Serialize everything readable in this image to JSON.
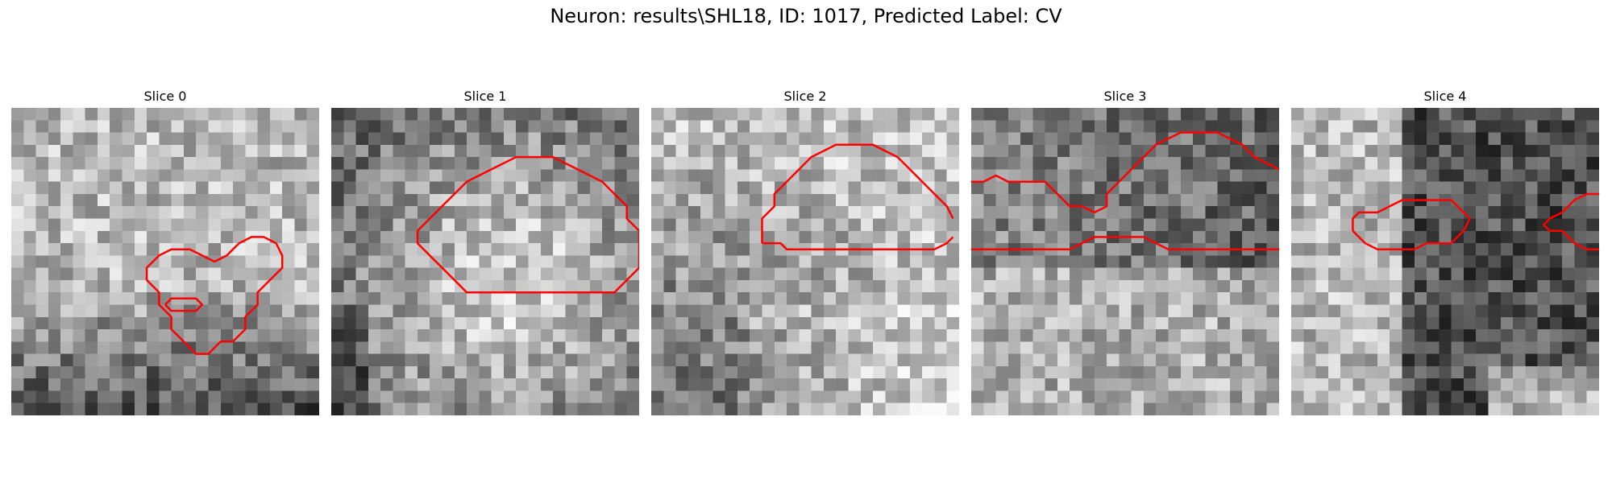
{
  "figure": {
    "title": "Neuron: results\\SHL18, ID: 1017, Predicted Label: CV",
    "contour_color": "#ff0000",
    "colormap": "gray"
  },
  "panels": [
    {
      "title": "Slice 0",
      "seed": 11,
      "pattern": "light-top-dark-bottom",
      "contours": [
        [
          [
            21.5,
            11
          ],
          [
            20.5,
            10.5
          ],
          [
            19.5,
            10.5
          ],
          [
            18.5,
            11
          ],
          [
            18,
            11.5
          ],
          [
            17.5,
            12
          ],
          [
            16.5,
            12.5
          ],
          [
            15.5,
            12
          ],
          [
            14.5,
            11.5
          ],
          [
            13,
            11.5
          ],
          [
            12,
            12
          ],
          [
            11,
            13
          ],
          [
            11,
            14
          ],
          [
            12,
            15
          ],
          [
            12,
            16
          ],
          [
            13,
            17
          ],
          [
            13,
            18
          ],
          [
            14,
            19
          ],
          [
            15,
            20
          ],
          [
            16,
            20
          ],
          [
            17,
            19
          ],
          [
            18,
            19
          ],
          [
            19,
            18
          ],
          [
            19,
            17
          ],
          [
            20,
            16
          ],
          [
            20,
            15
          ],
          [
            21,
            14
          ],
          [
            22,
            13
          ],
          [
            22,
            12
          ],
          [
            21.5,
            11
          ]
        ],
        [
          [
            12.5,
            16
          ],
          [
            13,
            15.5
          ],
          [
            15,
            15.5
          ],
          [
            15.5,
            16
          ],
          [
            15,
            16.5
          ],
          [
            13,
            16.5
          ],
          [
            12.5,
            16
          ]
        ]
      ]
    },
    {
      "title": "Slice 1",
      "seed": 23,
      "pattern": "light-center",
      "contours": [
        [
          [
            7,
            10
          ],
          [
            8,
            9
          ],
          [
            9,
            8
          ],
          [
            10,
            7
          ],
          [
            11,
            6
          ],
          [
            12,
            5.5
          ],
          [
            13,
            5
          ],
          [
            14,
            4.5
          ],
          [
            15,
            4
          ],
          [
            16,
            4
          ],
          [
            17,
            4
          ],
          [
            18,
            4
          ],
          [
            19,
            4.5
          ],
          [
            20,
            5
          ],
          [
            21,
            5.5
          ],
          [
            22,
            6
          ],
          [
            23,
            7
          ],
          [
            24,
            8
          ],
          [
            24,
            9
          ],
          [
            25,
            10
          ],
          [
            25,
            11
          ],
          [
            25,
            12
          ],
          [
            25,
            13
          ],
          [
            24,
            14
          ],
          [
            23,
            15
          ],
          [
            22,
            15
          ],
          [
            20,
            15
          ],
          [
            18,
            15
          ],
          [
            16,
            15
          ],
          [
            14,
            15
          ],
          [
            12,
            15
          ],
          [
            11,
            15
          ],
          [
            10,
            14
          ],
          [
            9,
            13
          ],
          [
            8,
            12
          ],
          [
            7,
            11
          ],
          [
            7,
            10
          ]
        ]
      ]
    },
    {
      "title": "Slice 2",
      "seed": 37,
      "pattern": "dark-bottom-left",
      "contours": [
        [
          [
            9,
            11
          ],
          [
            9,
            10
          ],
          [
            9,
            9
          ],
          [
            10,
            8
          ],
          [
            10,
            7
          ],
          [
            11,
            6
          ],
          [
            12,
            5
          ],
          [
            13,
            4
          ],
          [
            14,
            3.5
          ],
          [
            15,
            3
          ],
          [
            16,
            3
          ],
          [
            17,
            3
          ],
          [
            18,
            3
          ],
          [
            19,
            3.5
          ],
          [
            20,
            4
          ],
          [
            21,
            5
          ],
          [
            22,
            6
          ],
          [
            23,
            7
          ],
          [
            24,
            8
          ],
          [
            24.5,
            9
          ]
        ],
        [
          [
            24.5,
            10.5
          ],
          [
            24,
            11
          ],
          [
            23,
            11.5
          ],
          [
            22,
            11.5
          ],
          [
            20,
            11.5
          ],
          [
            18,
            11.5
          ],
          [
            16,
            11.5
          ],
          [
            14,
            11.5
          ],
          [
            12,
            11.5
          ],
          [
            11,
            11.5
          ],
          [
            10.5,
            11
          ],
          [
            9.5,
            11
          ],
          [
            9,
            11
          ]
        ]
      ]
    },
    {
      "title": "Slice 3",
      "seed": 53,
      "pattern": "dark-top-light-bottom",
      "contours": [
        [
          [
            0,
            6
          ],
          [
            1,
            6
          ],
          [
            2,
            5.5
          ],
          [
            3,
            6
          ],
          [
            4,
            6
          ],
          [
            5,
            6
          ],
          [
            6,
            6
          ],
          [
            7,
            7
          ],
          [
            8,
            8
          ],
          [
            9,
            8
          ],
          [
            10,
            8.5
          ],
          [
            11,
            8
          ],
          [
            11,
            7
          ],
          [
            12,
            6
          ],
          [
            13,
            5
          ],
          [
            14,
            4
          ],
          [
            15,
            3
          ],
          [
            16,
            2.5
          ],
          [
            17,
            2
          ],
          [
            18,
            2
          ],
          [
            19,
            2
          ],
          [
            20,
            2
          ],
          [
            21,
            2.5
          ],
          [
            22,
            3
          ],
          [
            23,
            4
          ],
          [
            24,
            4.5
          ],
          [
            25,
            5
          ]
        ],
        [
          [
            0,
            11.5
          ],
          [
            3,
            11.5
          ],
          [
            6,
            11.5
          ],
          [
            8,
            11.5
          ],
          [
            9,
            11
          ],
          [
            10,
            10.5
          ],
          [
            12,
            10.5
          ],
          [
            14,
            10.5
          ],
          [
            15,
            11
          ],
          [
            16,
            11.5
          ],
          [
            18,
            11.5
          ],
          [
            22,
            11.5
          ],
          [
            25,
            11.5
          ]
        ]
      ]
    },
    {
      "title": "Slice 4",
      "seed": 71,
      "pattern": "light-left-dark-right",
      "contours": [
        [
          [
            5,
            10
          ],
          [
            5,
            9
          ],
          [
            5.5,
            8.5
          ],
          [
            7,
            8.5
          ],
          [
            8,
            8
          ],
          [
            9,
            7.5
          ],
          [
            10,
            7.5
          ],
          [
            11,
            7.5
          ],
          [
            12,
            7.5
          ],
          [
            13,
            7.5
          ],
          [
            13.5,
            8
          ],
          [
            14,
            8.5
          ],
          [
            14.5,
            9
          ],
          [
            14,
            10
          ],
          [
            13.5,
            10.5
          ],
          [
            13,
            11
          ],
          [
            12,
            11
          ],
          [
            11,
            11
          ],
          [
            10,
            11.5
          ],
          [
            9,
            11.5
          ],
          [
            8,
            11.5
          ],
          [
            7,
            11.5
          ],
          [
            6,
            11
          ],
          [
            5.5,
            10.5
          ],
          [
            5,
            10
          ]
        ],
        [
          [
            25,
            7
          ],
          [
            24,
            7
          ],
          [
            23,
            7.5
          ],
          [
            22,
            8.5
          ],
          [
            21,
            9
          ],
          [
            20.5,
            9.5
          ],
          [
            21,
            10
          ],
          [
            22,
            10
          ],
          [
            23,
            11
          ],
          [
            24,
            11.5
          ],
          [
            25,
            11.5
          ]
        ]
      ]
    }
  ]
}
